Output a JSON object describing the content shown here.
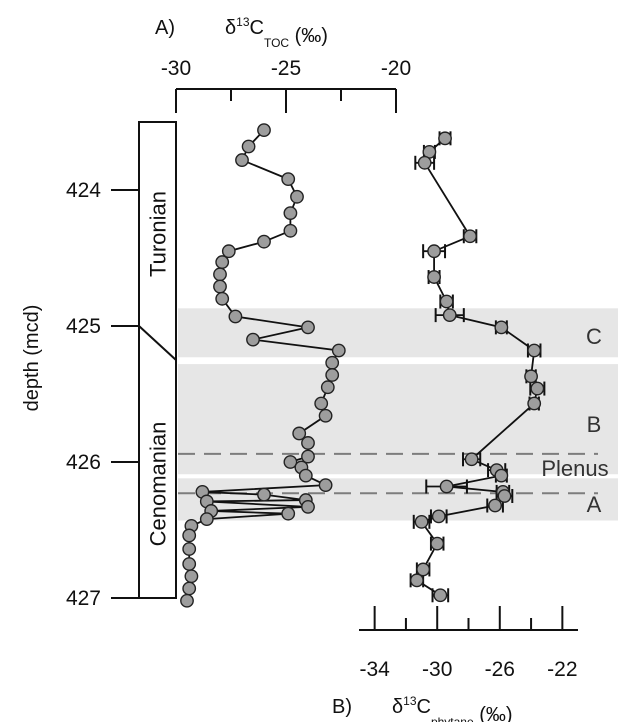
{
  "chart_data": {
    "type": "scatter",
    "ylabel": "depth (mcd)",
    "ylim": [
      423.5,
      427.0
    ],
    "yticks": [
      424,
      425,
      426,
      427
    ],
    "panels": [
      {
        "id": "A",
        "panel_letter": "A)",
        "title_main": "δ",
        "title_sup": "13",
        "title_C": "C",
        "title_sub": "TOC",
        "title_unit": " (‰)",
        "axis_position": "top",
        "xlim": [
          -30,
          -20
        ],
        "xticks": [
          -30,
          -25,
          -20
        ],
        "xtick_labels": [
          "-30",
          "-25",
          "-20"
        ],
        "minor_ticks": [
          -27.5,
          -22.5
        ],
        "connected": true,
        "error_bars": false,
        "points": [
          {
            "x": -26.0,
            "y": 423.56
          },
          {
            "x": -26.7,
            "y": 423.68
          },
          {
            "x": -27.0,
            "y": 423.78
          },
          {
            "x": -24.9,
            "y": 423.92
          },
          {
            "x": -24.5,
            "y": 424.05
          },
          {
            "x": -24.8,
            "y": 424.17
          },
          {
            "x": -24.8,
            "y": 424.3
          },
          {
            "x": -26.0,
            "y": 424.38
          },
          {
            "x": -27.6,
            "y": 424.45
          },
          {
            "x": -27.9,
            "y": 424.53
          },
          {
            "x": -28.0,
            "y": 424.62
          },
          {
            "x": -28.0,
            "y": 424.71
          },
          {
            "x": -27.9,
            "y": 424.8
          },
          {
            "x": -27.3,
            "y": 424.93
          },
          {
            "x": -24.0,
            "y": 425.01
          },
          {
            "x": -26.5,
            "y": 425.1
          },
          {
            "x": -22.6,
            "y": 425.18
          },
          {
            "x": -22.9,
            "y": 425.27
          },
          {
            "x": -22.9,
            "y": 425.36
          },
          {
            "x": -23.1,
            "y": 425.45
          },
          {
            "x": -23.4,
            "y": 425.57
          },
          {
            "x": -23.2,
            "y": 425.66
          },
          {
            "x": -24.4,
            "y": 425.79
          },
          {
            "x": -24.0,
            "y": 425.86
          },
          {
            "x": -24.0,
            "y": 425.96
          },
          {
            "x": -24.8,
            "y": 426.0
          },
          {
            "x": -24.3,
            "y": 426.04
          },
          {
            "x": -24.1,
            "y": 426.1
          },
          {
            "x": -23.2,
            "y": 426.17
          },
          {
            "x": -28.8,
            "y": 426.22
          },
          {
            "x": -26.0,
            "y": 426.24
          },
          {
            "x": -24.1,
            "y": 426.28
          },
          {
            "x": -28.6,
            "y": 426.29
          },
          {
            "x": -24.0,
            "y": 426.33
          },
          {
            "x": -28.4,
            "y": 426.36
          },
          {
            "x": -24.9,
            "y": 426.38
          },
          {
            "x": -28.6,
            "y": 426.42
          },
          {
            "x": -29.3,
            "y": 426.47
          },
          {
            "x": -29.4,
            "y": 426.54
          },
          {
            "x": -29.4,
            "y": 426.64
          },
          {
            "x": -29.4,
            "y": 426.75
          },
          {
            "x": -29.3,
            "y": 426.84
          },
          {
            "x": -29.4,
            "y": 426.93
          },
          {
            "x": -29.5,
            "y": 427.02
          }
        ]
      },
      {
        "id": "B",
        "panel_letter": "B)",
        "title_main": "δ",
        "title_sup": "13",
        "title_C": "C",
        "title_sub": "phytane",
        "title_unit": " (‰)",
        "axis_position": "bottom",
        "xlim": [
          -35,
          -21
        ],
        "xticks": [
          -34,
          -30,
          -26,
          -22
        ],
        "xtick_labels": [
          "-34",
          "-30",
          "-26",
          "-22"
        ],
        "minor_ticks": [
          -32,
          -28,
          -24
        ],
        "connected": true,
        "error_bars": true,
        "points": [
          {
            "x": -29.5,
            "y": 423.62,
            "err": 0.35
          },
          {
            "x": -30.5,
            "y": 423.72,
            "err": 0.35
          },
          {
            "x": -30.8,
            "y": 423.8,
            "err": 0.6
          },
          {
            "x": -27.9,
            "y": 424.34,
            "err": 0.4
          },
          {
            "x": -30.2,
            "y": 424.45,
            "err": 0.7
          },
          {
            "x": -30.2,
            "y": 424.64,
            "err": 0.35
          },
          {
            "x": -29.4,
            "y": 424.82,
            "err": 0.4
          },
          {
            "x": -29.2,
            "y": 424.92,
            "err": 0.9
          },
          {
            "x": -25.9,
            "y": 425.01,
            "err": 0.35
          },
          {
            "x": -23.8,
            "y": 425.18,
            "err": 0.4
          },
          {
            "x": -24.0,
            "y": 425.37,
            "err": 0.3
          },
          {
            "x": -23.6,
            "y": 425.46,
            "err": 0.45
          },
          {
            "x": -23.8,
            "y": 425.57,
            "err": 0.3
          },
          {
            "x": -27.8,
            "y": 425.98,
            "err": 0.55
          },
          {
            "x": -26.2,
            "y": 426.06,
            "err": 0.55
          },
          {
            "x": -25.9,
            "y": 426.1,
            "err": 0.35
          },
          {
            "x": -29.4,
            "y": 426.18,
            "err": 1.3
          },
          {
            "x": -25.8,
            "y": 426.22,
            "err": 0.4
          },
          {
            "x": -25.7,
            "y": 426.25,
            "err": 0.5
          },
          {
            "x": -26.3,
            "y": 426.32,
            "err": 0.5
          },
          {
            "x": -29.9,
            "y": 426.4,
            "err": 0.5
          },
          {
            "x": -31.0,
            "y": 426.44,
            "err": 0.5
          },
          {
            "x": -30.0,
            "y": 426.6,
            "err": 0.4
          },
          {
            "x": -30.9,
            "y": 426.79,
            "err": 0.4
          },
          {
            "x": -31.3,
            "y": 426.87,
            "err": 0.4
          },
          {
            "x": -29.8,
            "y": 426.98,
            "err": 0.5
          }
        ]
      }
    ],
    "stages": [
      {
        "name": "Turonian",
        "top": 423.5,
        "base": 425.0
      },
      {
        "name": "Cenomanian",
        "top": 425.25,
        "base": 427.0
      }
    ],
    "shaded_zones": [
      {
        "label": "C",
        "top": 424.87,
        "base": 425.23
      },
      {
        "label": "B",
        "top": 425.28,
        "base": 426.09
      },
      {
        "label": "A",
        "top": 426.12,
        "base": 426.43
      }
    ],
    "dashed_lines": [
      425.94,
      426.23
    ],
    "annotations": [
      "Plenus"
    ]
  }
}
